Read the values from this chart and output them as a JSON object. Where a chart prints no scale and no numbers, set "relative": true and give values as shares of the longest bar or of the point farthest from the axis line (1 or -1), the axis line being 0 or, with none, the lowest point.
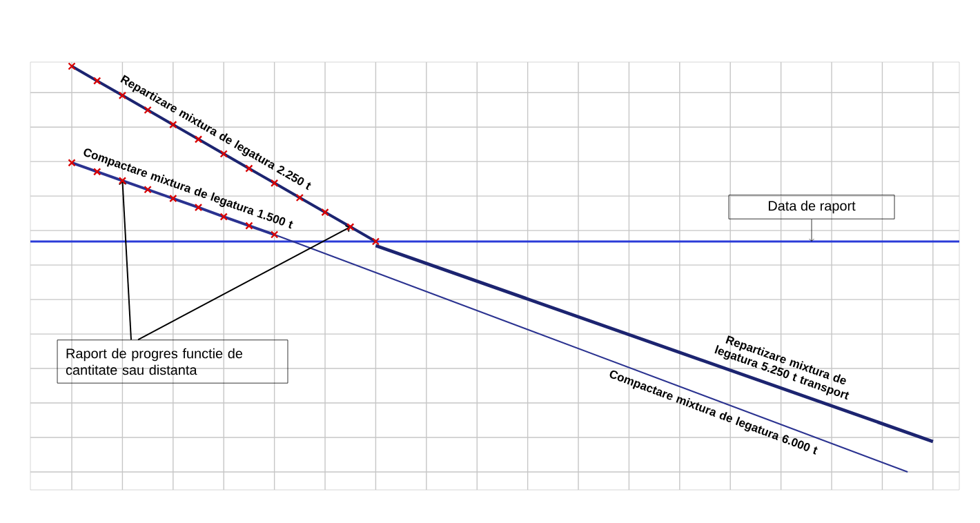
{
  "chart_data": {
    "type": "line",
    "relative": true,
    "grid": true,
    "categories": [
      null,
      null,
      null,
      null,
      null,
      null,
      null,
      null,
      null,
      null,
      null,
      null,
      null,
      null,
      null,
      null,
      null,
      null,
      null,
      null,
      null,
      null,
      null,
      null,
      null,
      null,
      null,
      null,
      null,
      null,
      null,
      null,
      null,
      null,
      null
    ],
    "series": [
      {
        "name": "Repartizare mixtura de legatura 2.250 t",
        "color": "#1c2470",
        "marker": "cross",
        "values": [
          1,
          0.964,
          0.928,
          0.892,
          0.856,
          0.82,
          0.784,
          0.748,
          0.712,
          0.676,
          0.64,
          0.604,
          0.568,
          null,
          null,
          null,
          null,
          null,
          null,
          null,
          null,
          null,
          null,
          null,
          null,
          null,
          null,
          null,
          null,
          null,
          null,
          null,
          null,
          null,
          null
        ]
      },
      {
        "name": "Repartizare mixtura de legatura 5.250 t transport",
        "color": "#1c2470",
        "marker": "none",
        "values": [
          null,
          null,
          null,
          null,
          null,
          null,
          null,
          null,
          null,
          null,
          null,
          null,
          0.558,
          null,
          null,
          null,
          null,
          null,
          null,
          null,
          null,
          null,
          null,
          null,
          null,
          null,
          null,
          null,
          null,
          null,
          null,
          null,
          null,
          null,
          0.075
        ]
      },
      {
        "name": "Compactare mixtura de legatura 1.500 t",
        "color": "#2a3290",
        "marker": "cross",
        "values": [
          0.762,
          0.74,
          0.718,
          0.696,
          0.674,
          0.652,
          0.629,
          0.607,
          0.585,
          null,
          null,
          null,
          null,
          null,
          null,
          null,
          null,
          null,
          null,
          null,
          null,
          null,
          null,
          null,
          null,
          null,
          null,
          null,
          null,
          null,
          null,
          null,
          null,
          null,
          null
        ]
      },
      {
        "name": "Compactare mixtura de legatura 6.000 t",
        "color": "#2a3290",
        "marker": "none",
        "values": [
          null,
          null,
          null,
          null,
          null,
          null,
          null,
          null,
          0.585,
          null,
          null,
          null,
          null,
          null,
          null,
          null,
          null,
          null,
          null,
          null,
          null,
          null,
          null,
          null,
          null,
          null,
          null,
          null,
          null,
          null,
          null,
          null,
          null,
          0,
          null
        ]
      }
    ],
    "ref_lines": [
      {
        "axis": "y",
        "value": 0.568,
        "label": "Data de raport",
        "color": "#2a3bd8"
      }
    ],
    "annotations": [
      "Raport de progres functie de cantitate sau distanta"
    ]
  }
}
